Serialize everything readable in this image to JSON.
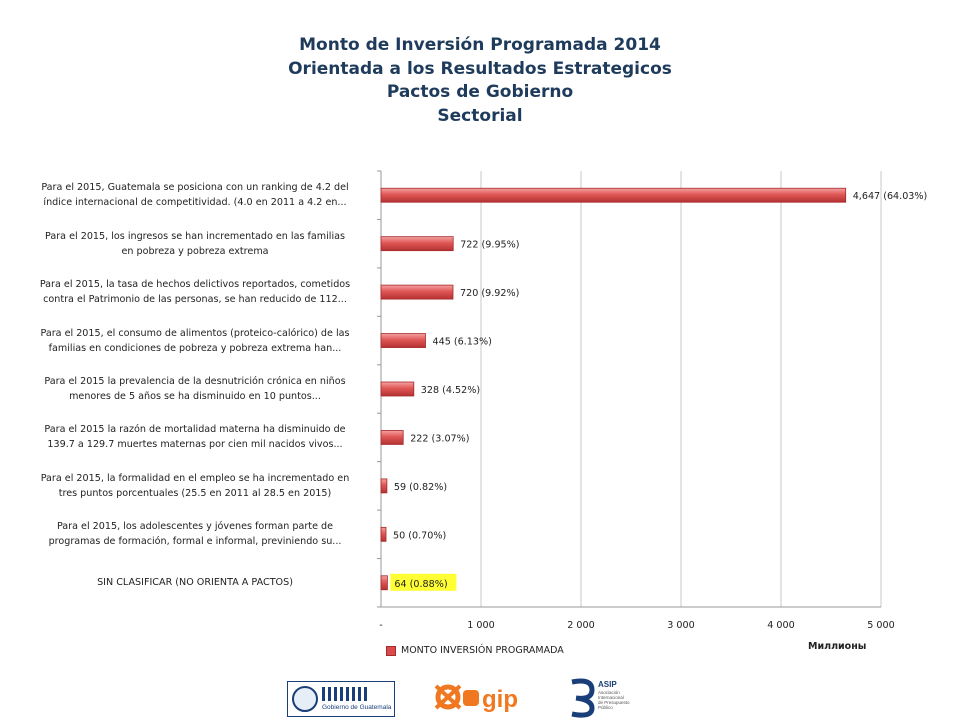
{
  "title_lines": [
    "Monto de Inversión Programada 2014",
    "Orientada a los Resultados Estrategicos",
    "Pactos de Gobierno",
    "Sectorial"
  ],
  "chart_data": {
    "type": "bar",
    "orientation": "horizontal",
    "categories": [
      [
        "Para el 2015, Guatemala se posiciona con un ranking de 4.2 del",
        "índice internacional de competitividad. (4.0 en 2011 a 4.2 en..."
      ],
      [
        "Para el 2015, los ingresos se han incrementado en las familias",
        "en pobreza y pobreza extrema"
      ],
      [
        "Para el 2015, la tasa de hechos delictivos reportados, cometidos",
        "contra el Patrimonio de las personas, se han reducido de 112..."
      ],
      [
        "Para el 2015, el consumo de alimentos (proteico-calórico) de las",
        "familias en condiciones de pobreza y pobreza extrema han..."
      ],
      [
        "Para el 2015 la prevalencia de  la desnutrición crónica en niños",
        "menores de 5 años se ha disminuido en 10 puntos..."
      ],
      [
        "Para el 2015 la razón de mortalidad materna ha disminuido de",
        "139.7 a 129.7 muertes maternas por cien mil nacidos vivos..."
      ],
      [
        "Para el 2015, la formalidad en el empleo se ha incrementado en",
        "tres puntos porcentuales (25.5 en 2011 al 28.5 en 2015)"
      ],
      [
        "Para el 2015, los adolescentes y jóvenes forman parte de",
        "programas de formación, formal e informal, previniendo su..."
      ],
      [
        "SIN CLASIFICAR (NO ORIENTA A PACTOS)"
      ]
    ],
    "values": [
      4647,
      722,
      720,
      445,
      328,
      222,
      59,
      50,
      64
    ],
    "data_labels": [
      "4,647 (64.03%)",
      "722 (9.95%)",
      "720 (9.92%)",
      "445 (6.13%)",
      "328 (4.52%)",
      "222 (3.07%)",
      "59 (0.82%)",
      "50 (0.70%)",
      "64 (0.88%)"
    ],
    "highlighted_label_index": 8,
    "highlight_color": "#ffff33",
    "xlim": [
      0,
      5000
    ],
    "xticks": [
      0,
      1000,
      2000,
      3000,
      4000,
      5000
    ],
    "xtick_labels": [
      "-",
      "1 000",
      "2 000",
      "3 000",
      "4 000",
      "5 000"
    ],
    "units_label": "Миллионы",
    "grid": true,
    "legend": {
      "position": "bottom",
      "series_name": "MONTO INVERSIÓN PROGRAMADA"
    },
    "bar_color": "#d94a4a",
    "bar_edge_color": "#a52a2a"
  },
  "logos": {
    "gobierno": "Gobierno de Guatemala",
    "sigip": "sigip",
    "asip": [
      "ASIP",
      "Asociación",
      "Internacional",
      "de Presupuesto",
      "Público"
    ]
  }
}
